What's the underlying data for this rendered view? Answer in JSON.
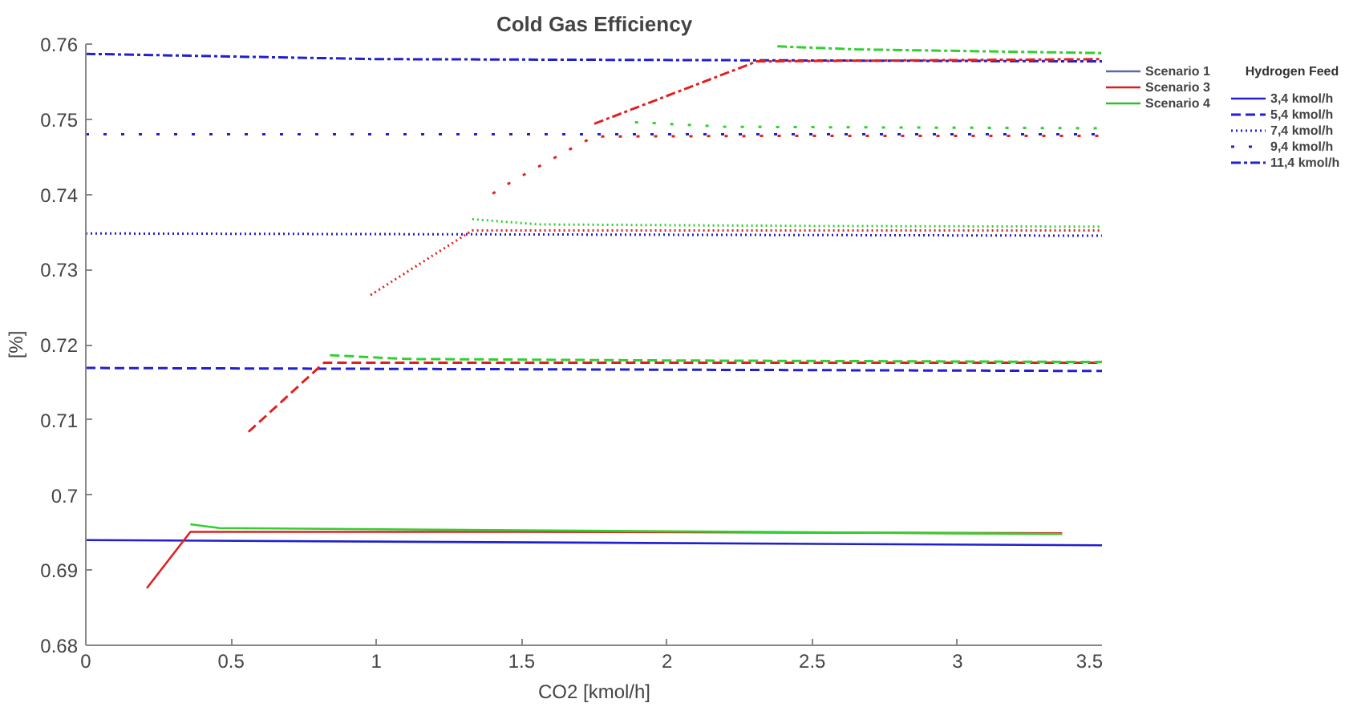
{
  "chart_data": {
    "type": "line",
    "title": "Cold Gas Efficiency",
    "xlabel": "CO2 [kmol/h]",
    "ylabel": "[%]",
    "legend_title": "Hydrogen Feed",
    "xlim": [
      0,
      3.5
    ],
    "xticks": [
      0,
      0.5,
      1,
      1.5,
      2,
      2.5,
      3,
      3.5
    ],
    "ylim": [
      0.68,
      0.76
    ],
    "yticks": [
      0.68,
      0.69,
      0.7,
      0.71,
      0.72,
      0.73,
      0.74,
      0.75,
      0.76
    ],
    "grid": false,
    "legend": "right",
    "marker": "none",
    "series": [
      {
        "name": "Scenario 1",
        "color": "#5a68a8",
        "line_style": "solid"
      },
      {
        "name": "Scenario 3",
        "color": "#d42020",
        "line_style": "solid"
      },
      {
        "name": "Scenario 4",
        "color": "#2cc02c",
        "line_style": "solid"
      },
      {
        "name": "3,4 kmol/h",
        "color": "#2020d0",
        "line_style": "solid",
        "x": [
          0,
          3.5
        ],
        "values": [
          0.694,
          0.6933
        ]
      },
      {
        "color": "#e02020",
        "line_style": "solid",
        "x": [
          0.21,
          0.36,
          1.5,
          3.36
        ],
        "values": [
          0.6876,
          0.6951,
          0.6951,
          0.6949
        ]
      },
      {
        "color": "#30d030",
        "line_style": "solid",
        "x": [
          0.36,
          0.46,
          1.5,
          3.36
        ],
        "values": [
          0.6961,
          0.6956,
          0.6953,
          0.6948
        ]
      },
      {
        "name": "5,4 kmol/h",
        "color": "#2020d0",
        "line_style": "dashed",
        "x": [
          0,
          3.5
        ],
        "values": [
          0.7169,
          0.7165
        ]
      },
      {
        "color": "#e02020",
        "line_style": "dashed",
        "x": [
          0.56,
          0.82,
          2,
          3.5
        ],
        "values": [
          0.7084,
          0.7176,
          0.7176,
          0.7176
        ]
      },
      {
        "color": "#30d030",
        "line_style": "dashed",
        "x": [
          0.84,
          1.1,
          2,
          3.5
        ],
        "values": [
          0.7186,
          0.7181,
          0.7179,
          0.7177
        ]
      },
      {
        "name": "7,4 kmol/h",
        "color": "#2020d0",
        "line_style": "dotted",
        "x": [
          0,
          3.5
        ],
        "values": [
          0.7348,
          0.7345
        ]
      },
      {
        "color": "#e02020",
        "line_style": "dotted",
        "x": [
          0.98,
          1.33,
          2,
          3.5
        ],
        "values": [
          0.7266,
          0.7352,
          0.7352,
          0.7352
        ]
      },
      {
        "color": "#30d030",
        "line_style": "dotted",
        "x": [
          1.33,
          1.56,
          2.5,
          3.5
        ],
        "values": [
          0.7367,
          0.736,
          0.7358,
          0.7357
        ]
      },
      {
        "name": "9,4 kmol/h",
        "color": "#2020d0",
        "line_style": "loosely dotted",
        "x": [
          0,
          3.5
        ],
        "values": [
          0.748,
          0.748
        ]
      },
      {
        "color": "#e02020",
        "line_style": "loosely dotted",
        "x": [
          1.4,
          1.47,
          1.54,
          1.61,
          1.68,
          1.75,
          2.5,
          3.5
        ],
        "values": [
          0.7401,
          0.7418,
          0.7433,
          0.7448,
          0.7463,
          0.7477,
          0.7478,
          0.7478
        ]
      },
      {
        "color": "#30d030",
        "line_style": "loosely dotted",
        "x": [
          1.89,
          2.2,
          3.5
        ],
        "values": [
          0.7496,
          0.749,
          0.7488
        ]
      },
      {
        "name": "11,4 kmol/h",
        "color": "#2020d0",
        "line_style": "dashdot",
        "x": [
          0,
          1,
          3.5
        ],
        "values": [
          0.7587,
          0.758,
          0.7577
        ]
      },
      {
        "color": "#e02020",
        "line_style": "dashdot",
        "x": [
          1.75,
          2.31,
          3.5
        ],
        "values": [
          0.7494,
          0.7577,
          0.758
        ]
      },
      {
        "color": "#30d030",
        "line_style": "dashdot",
        "x": [
          2.38,
          2.65,
          3.5
        ],
        "values": [
          0.7597,
          0.7593,
          0.7588
        ]
      }
    ]
  }
}
